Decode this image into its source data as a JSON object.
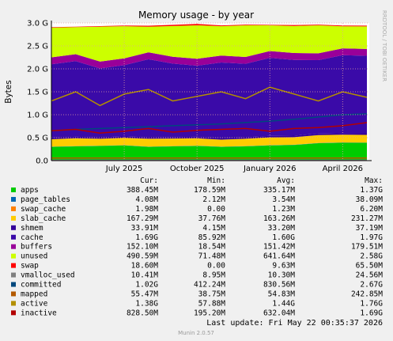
{
  "chart_data": {
    "type": "area",
    "title": "Memory usage - by year",
    "y_label": "Bytes",
    "side_note": "RRDTOOL / TOBI OETIKER",
    "x": [
      "2025-04",
      "2025-05",
      "2025-06",
      "2025-07",
      "2025-08",
      "2025-09",
      "2025-10",
      "2025-11",
      "2025-12",
      "2026-01",
      "2026-02",
      "2026-03",
      "2026-04",
      "2026-05"
    ],
    "xlim": [
      "2025-04",
      "2026-05"
    ],
    "xticks": [
      {
        "value": "2025-07",
        "label": "July 2025"
      },
      {
        "value": "2025-10",
        "label": "October 2025"
      },
      {
        "value": "2026-01",
        "label": "January 2026"
      },
      {
        "value": "2026-04",
        "label": "April 2026"
      }
    ],
    "ylim": [
      0,
      3000000000
    ],
    "yticks": [
      {
        "value": 0,
        "label": "0.0"
      },
      {
        "value": 500000000,
        "label": "0.5 G"
      },
      {
        "value": 1000000000,
        "label": "1.0 G"
      },
      {
        "value": 1500000000,
        "label": "1.5 G"
      },
      {
        "value": 2000000000,
        "label": "2.0 G"
      },
      {
        "value": 2500000000,
        "label": "2.5 G"
      },
      {
        "value": 3000000000,
        "label": "3.0 G"
      }
    ],
    "grid": true,
    "legend_headers": [
      "Cur:",
      "Min:",
      "Avg:",
      "Max:"
    ],
    "series": [
      {
        "name": "apps",
        "color": "#00cc00",
        "draw": "area",
        "stats": [
          "388.45M",
          "178.59M",
          "335.17M",
          "1.37G"
        ],
        "values": [
          300000000,
          310000000,
          320000000,
          330000000,
          300000000,
          310000000,
          320000000,
          300000000,
          310000000,
          330000000,
          340000000,
          380000000,
          390000000,
          388000000
        ]
      },
      {
        "name": "page_tables",
        "color": "#0066b3",
        "draw": "area",
        "stats": [
          "4.08M",
          "2.12M",
          "3.54M",
          "38.09M"
        ],
        "values": [
          4000000,
          4000000,
          4000000,
          4000000,
          4000000,
          4000000,
          4000000,
          4000000,
          4000000,
          4000000,
          4000000,
          4000000,
          4000000,
          4000000
        ]
      },
      {
        "name": "swap_cache",
        "color": "#ff8000",
        "draw": "area",
        "stats": [
          "1.98M",
          "0.00",
          "1.23M",
          "6.20M"
        ],
        "values": [
          2000000,
          2000000,
          2000000,
          2000000,
          2000000,
          2000000,
          2000000,
          2000000,
          2000000,
          2000000,
          2000000,
          2000000,
          2000000,
          2000000
        ]
      },
      {
        "name": "slab_cache",
        "color": "#ffcc00",
        "draw": "area",
        "stats": [
          "167.29M",
          "37.76M",
          "163.26M",
          "231.27M"
        ],
        "values": [
          160000000,
          170000000,
          150000000,
          160000000,
          170000000,
          165000000,
          160000000,
          150000000,
          160000000,
          170000000,
          165000000,
          170000000,
          168000000,
          167000000
        ]
      },
      {
        "name": "shmem",
        "color": "#330099",
        "draw": "area",
        "stats": [
          "33.91M",
          "4.15M",
          "33.20M",
          "37.19M"
        ],
        "values": [
          33000000,
          33000000,
          33000000,
          33000000,
          33000000,
          33000000,
          33000000,
          33000000,
          33000000,
          33000000,
          33000000,
          33000000,
          33000000,
          33000000
        ]
      },
      {
        "name": "cache",
        "color": "#3a0aa8",
        "draw": "area",
        "stats": [
          "1.69G",
          "85.92M",
          "1.60G",
          "1.97G"
        ],
        "values": [
          1600000000,
          1650000000,
          1500000000,
          1550000000,
          1700000000,
          1600000000,
          1550000000,
          1650000000,
          1600000000,
          1700000000,
          1650000000,
          1600000000,
          1700000000,
          1690000000
        ]
      },
      {
        "name": "buffers",
        "color": "#990099",
        "draw": "area",
        "stats": [
          "152.10M",
          "18.54M",
          "151.42M",
          "179.51M"
        ],
        "values": [
          150000000,
          150000000,
          150000000,
          150000000,
          150000000,
          150000000,
          150000000,
          150000000,
          150000000,
          150000000,
          150000000,
          150000000,
          150000000,
          150000000
        ]
      },
      {
        "name": "unused",
        "color": "#ccff00",
        "draw": "area",
        "stats": [
          "490.59M",
          "71.48M",
          "641.64M",
          "2.58G"
        ],
        "values": [
          650000000,
          590000000,
          760000000,
          700000000,
          560000000,
          670000000,
          730000000,
          640000000,
          690000000,
          560000000,
          590000000,
          610000000,
          480000000,
          490000000
        ]
      },
      {
        "name": "swap",
        "color": "#ff0000",
        "draw": "area",
        "stats": [
          "18.60M",
          "0.00",
          "9.63M",
          "65.50M"
        ],
        "values": [
          10000000,
          10000000,
          12000000,
          15000000,
          20000000,
          25000000,
          30000000,
          18000000,
          15000000,
          10000000,
          20000000,
          15000000,
          18000000,
          18000000
        ]
      },
      {
        "name": "vmalloc_used",
        "color": "#808080",
        "draw": "line",
        "stats": [
          "10.41M",
          "8.95M",
          "10.30M",
          "24.56M"
        ],
        "values": [
          10000000,
          10000000,
          10000000,
          10000000,
          10000000,
          10000000,
          10000000,
          10000000,
          10000000,
          10000000,
          10000000,
          10000000,
          10000000,
          10000000
        ]
      },
      {
        "name": "committed",
        "color": "#00487d",
        "draw": "line",
        "stats": [
          "1.02G",
          "412.24M",
          "830.56M",
          "2.67G"
        ],
        "values": [
          650000000,
          680000000,
          700000000,
          720000000,
          740000000,
          760000000,
          780000000,
          800000000,
          830000000,
          860000000,
          900000000,
          950000000,
          1000000000,
          1020000000
        ]
      },
      {
        "name": "mapped",
        "color": "#b35a00",
        "draw": "line",
        "stats": [
          "55.47M",
          "38.75M",
          "54.83M",
          "242.85M"
        ],
        "values": [
          55000000,
          55000000,
          55000000,
          55000000,
          55000000,
          55000000,
          55000000,
          55000000,
          55000000,
          55000000,
          55000000,
          55000000,
          55000000,
          55000000
        ]
      },
      {
        "name": "active",
        "color": "#b38f00",
        "draw": "line",
        "stats": [
          "1.38G",
          "57.88M",
          "1.44G",
          "1.76G"
        ],
        "values": [
          1300000000,
          1500000000,
          1200000000,
          1450000000,
          1550000000,
          1300000000,
          1400000000,
          1500000000,
          1350000000,
          1600000000,
          1450000000,
          1300000000,
          1500000000,
          1380000000
        ]
      },
      {
        "name": "inactive",
        "color": "#b30000",
        "draw": "line",
        "stats": [
          "828.50M",
          "195.20M",
          "632.04M",
          "1.69G"
        ],
        "values": [
          650000000,
          680000000,
          600000000,
          640000000,
          700000000,
          620000000,
          660000000,
          680000000,
          700000000,
          640000000,
          700000000,
          720000000,
          760000000,
          828000000
        ]
      }
    ],
    "last_update": "Last update: Fri May 22 00:35:37 2026",
    "footer": "Munin 2.0.57"
  }
}
